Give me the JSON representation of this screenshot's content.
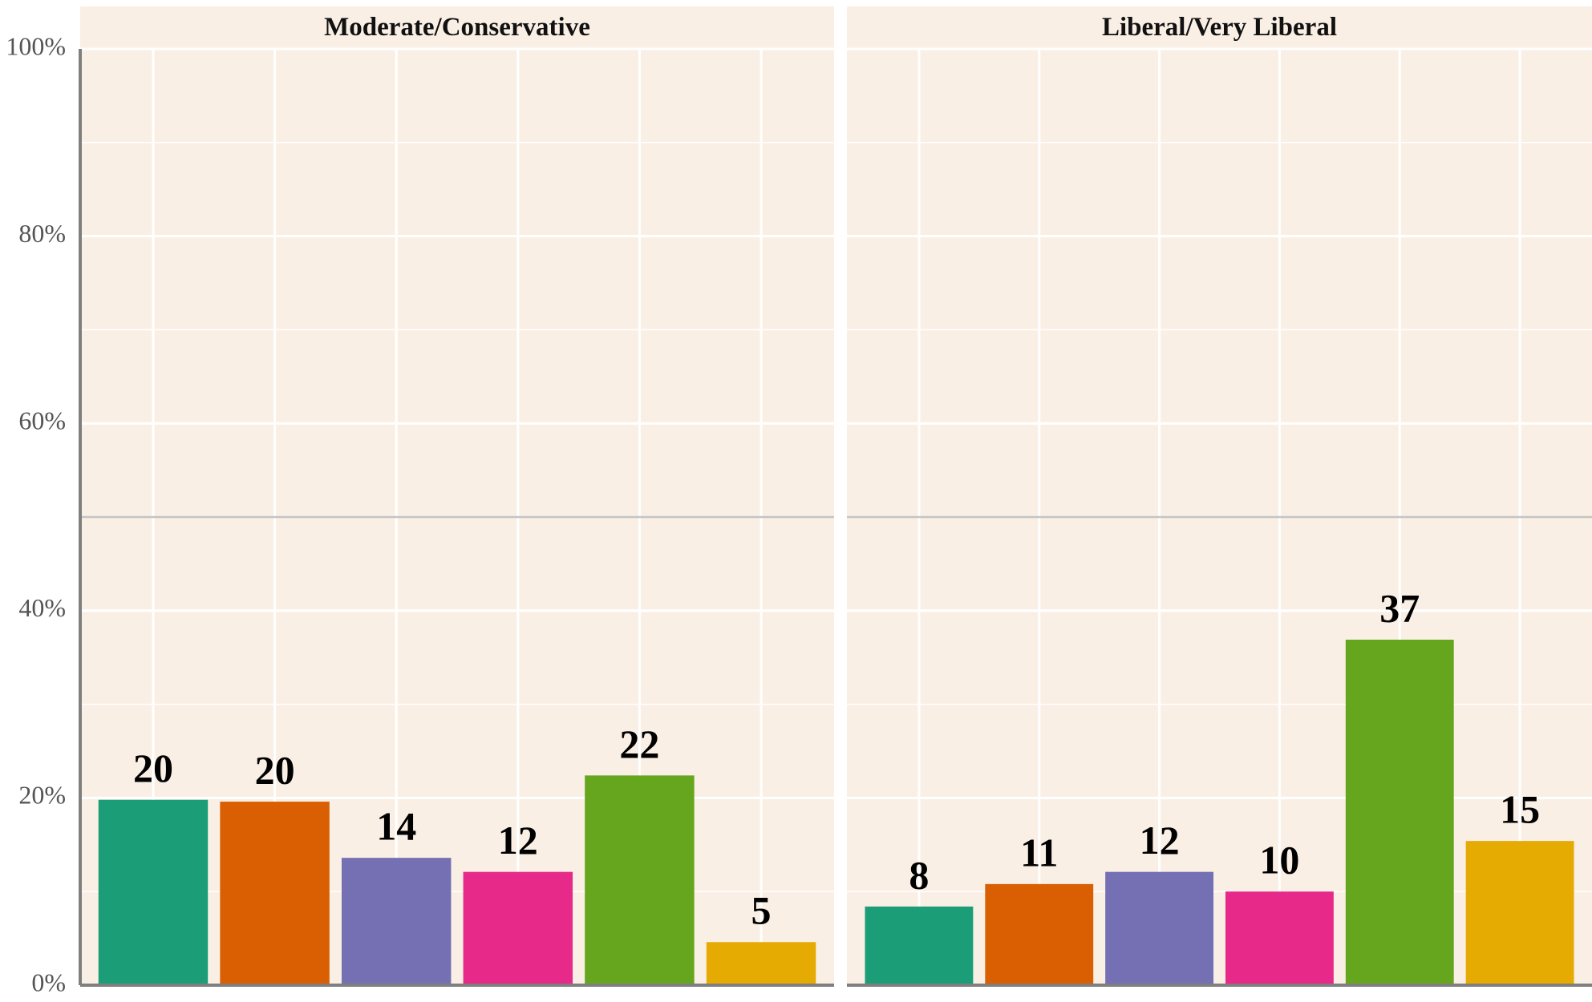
{
  "chart_data": [
    {
      "type": "bar",
      "title": "Moderate/Conservative",
      "categories": [
        null,
        null,
        null,
        null,
        null,
        null
      ],
      "values": [
        19.8,
        19.6,
        13.6,
        12.1,
        22.4,
        4.6
      ],
      "value_labels": [
        "20",
        "20",
        "14",
        "12",
        "22",
        "5"
      ],
      "colors": [
        "#1b9e77",
        "#d95f02",
        "#7570b3",
        "#e7298a",
        "#66a61e",
        "#e6ab02"
      ],
      "ylim": [
        0,
        100
      ],
      "yticks": [
        {
          "value": 0,
          "label": "0%"
        },
        {
          "value": 20,
          "label": "20%"
        },
        {
          "value": 40,
          "label": "40%"
        },
        {
          "value": 60,
          "label": "60%"
        },
        {
          "value": 80,
          "label": "80%"
        },
        {
          "value": 100,
          "label": "100%"
        }
      ],
      "reference_line": 50,
      "grid": true
    },
    {
      "type": "bar",
      "title": "Liberal/Very Liberal",
      "categories": [
        null,
        null,
        null,
        null,
        null,
        null
      ],
      "values": [
        8.4,
        10.8,
        12.1,
        10.0,
        36.9,
        15.4
      ],
      "value_labels": [
        "8",
        "11",
        "12",
        "10",
        "37",
        "15"
      ],
      "colors": [
        "#1b9e77",
        "#d95f02",
        "#7570b3",
        "#e7298a",
        "#66a61e",
        "#e6ab02"
      ],
      "ylim": [
        0,
        100
      ],
      "yticks": [
        {
          "value": 0,
          "label": "0%"
        },
        {
          "value": 20,
          "label": "20%"
        },
        {
          "value": 40,
          "label": "40%"
        },
        {
          "value": 60,
          "label": "60%"
        },
        {
          "value": 80,
          "label": "80%"
        },
        {
          "value": 100,
          "label": "100%"
        }
      ],
      "reference_line": 50,
      "grid": true
    }
  ]
}
